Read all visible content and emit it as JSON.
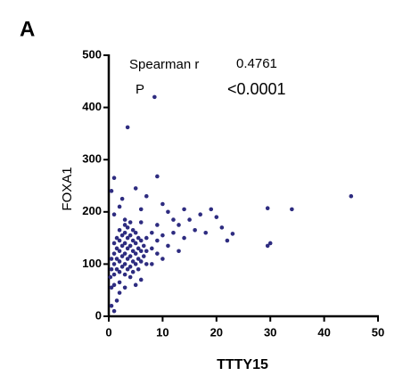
{
  "chart_data": {
    "type": "scatter",
    "panel_label": "A",
    "x_label": "TTTY15",
    "y_label": "FOXA1",
    "annotations": [
      "Spearman r",
      "0.4761",
      "P",
      "<0.0001"
    ],
    "color": "#2e2c80",
    "xlim": [
      0,
      50
    ],
    "ylim": [
      0,
      500
    ],
    "xticks": [
      0,
      10,
      20,
      30,
      40,
      50
    ],
    "yticks": [
      0,
      100,
      200,
      300,
      400,
      500
    ],
    "x": [
      8.5,
      3.5,
      9,
      1,
      0.5,
      45,
      34,
      29.5,
      19,
      20,
      17,
      14,
      15,
      21,
      23,
      22,
      18,
      30,
      29.5,
      13,
      12,
      11,
      10,
      11,
      13,
      9,
      0.5,
      1,
      1.5,
      2,
      0.3,
      0.5,
      2,
      3,
      5,
      4,
      6,
      8,
      10,
      14,
      16,
      12,
      7,
      6,
      5,
      2,
      1,
      3,
      2.5,
      1,
      1,
      1,
      1,
      1.5,
      1.5,
      1.5,
      1.5,
      2,
      2,
      2,
      2,
      2,
      2.5,
      2.5,
      2.5,
      2.5,
      3,
      3,
      3,
      3,
      3,
      3.5,
      3.5,
      3.5,
      3.5,
      3.5,
      4,
      4,
      4,
      4,
      4.5,
      4.5,
      4.5,
      4.5,
      4.5,
      5,
      5,
      5,
      5,
      5.5,
      5.5,
      5.5,
      5.5,
      6,
      6,
      6,
      6.5,
      6.5,
      7,
      7,
      7,
      8,
      8,
      9,
      9,
      10,
      0.5,
      0.5,
      1,
      3,
      4,
      6
    ],
    "values": [
      420,
      362,
      268,
      265,
      240,
      230,
      205,
      207,
      205,
      190,
      195,
      205,
      185,
      170,
      158,
      145,
      160,
      140,
      135,
      175,
      160,
      200,
      215,
      135,
      125,
      120,
      20,
      10,
      30,
      45,
      75,
      55,
      65,
      55,
      60,
      75,
      70,
      100,
      110,
      150,
      165,
      185,
      230,
      205,
      245,
      210,
      195,
      185,
      225,
      80,
      100,
      120,
      140,
      90,
      110,
      130,
      150,
      85,
      105,
      125,
      145,
      165,
      95,
      115,
      135,
      155,
      80,
      100,
      120,
      140,
      160,
      90,
      110,
      130,
      150,
      170,
      95,
      115,
      135,
      155,
      85,
      105,
      125,
      145,
      165,
      100,
      120,
      140,
      160,
      90,
      110,
      130,
      150,
      105,
      125,
      145,
      115,
      135,
      100,
      125,
      150,
      130,
      160,
      145,
      175,
      155,
      110,
      90,
      60,
      175,
      180,
      180
    ]
  }
}
